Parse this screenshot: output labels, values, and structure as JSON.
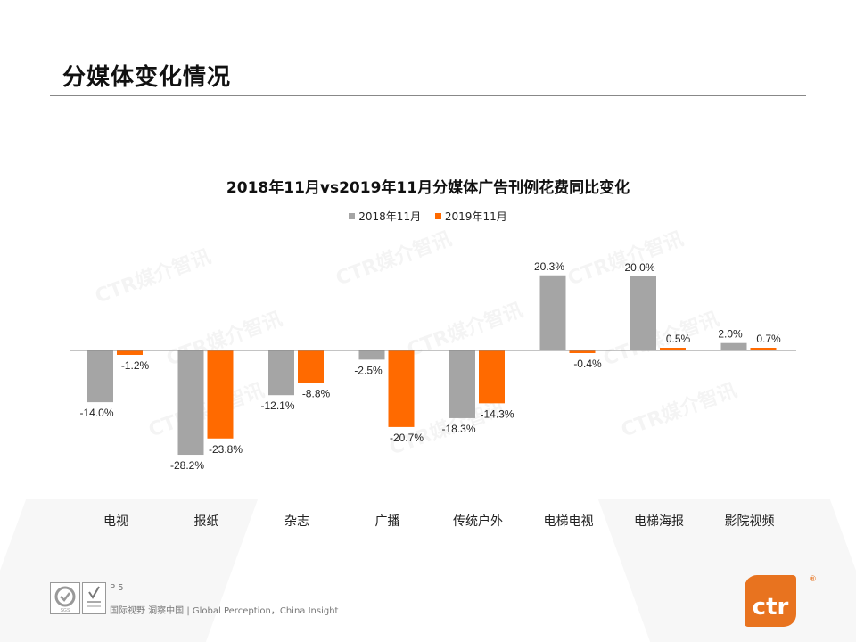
{
  "page": {
    "title": "分媒体变化情况",
    "page_number": "P 5",
    "tagline": "国际视野 洞察中国 | Global Perception，China Insight",
    "logo_text": "ctr",
    "logo_reg": "®",
    "watermark": "CTR媒介智讯"
  },
  "colors": {
    "series_2018": "#a5a5a5",
    "series_2019": "#ff6a00",
    "axis": "#888888",
    "brand": "#e8731f"
  },
  "chart_data": {
    "type": "bar",
    "title": "2018年11月vs2019年11月分媒体广告刊例花费同比变化",
    "categories": [
      "电视",
      "报纸",
      "杂志",
      "广播",
      "传统户外",
      "电梯电视",
      "电梯海报",
      "影院视频"
    ],
    "series": [
      {
        "name": "2018年11月",
        "values": [
          -14.0,
          -28.2,
          -12.1,
          -2.5,
          -18.3,
          20.3,
          20.0,
          2.0
        ],
        "labels": [
          "-14.0%",
          "-28.2%",
          "-12.1%",
          "-2.5%",
          "-18.3%",
          "20.3%",
          "20.0%",
          "2.0%"
        ]
      },
      {
        "name": "2019年11月",
        "values": [
          -1.2,
          -23.8,
          -8.8,
          -20.7,
          -14.3,
          -0.4,
          0.5,
          0.7
        ],
        "labels": [
          "-1.2%",
          "-23.8%",
          "-8.8%",
          "-20.7%",
          "-14.3%",
          "-0.4%",
          "0.5%",
          "0.7%"
        ]
      }
    ],
    "xlabel": "",
    "ylabel": "",
    "unit": "%",
    "legend": "top",
    "grid": false,
    "ylim": [
      -30,
      22
    ]
  }
}
